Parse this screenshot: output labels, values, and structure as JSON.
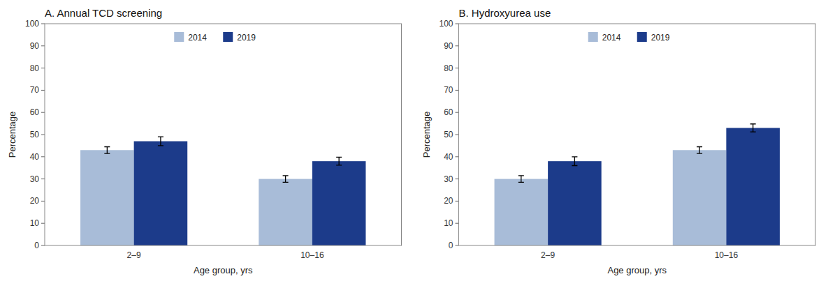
{
  "chart_data": [
    {
      "type": "bar",
      "title": "A. Annual TCD screening",
      "xlabel": "Age group, yrs",
      "ylabel": "Percentage",
      "categories": [
        "2–9",
        "10–16"
      ],
      "series": [
        {
          "name": "2014",
          "color": "#a8bcd8",
          "values": [
            43,
            30
          ],
          "errors": [
            1.5,
            1.5
          ]
        },
        {
          "name": "2019",
          "color": "#1c3b8a",
          "values": [
            47,
            38
          ],
          "errors": [
            2.0,
            1.8
          ]
        }
      ],
      "ylim": [
        0,
        100
      ],
      "yticks": [
        0,
        10,
        20,
        30,
        40,
        50,
        60,
        70,
        80,
        90,
        100
      ],
      "grid": false,
      "legend": "top"
    },
    {
      "type": "bar",
      "title": "B. Hydroxyurea use",
      "xlabel": "Age group, yrs",
      "ylabel": "Percentage",
      "categories": [
        "2–9",
        "10–16"
      ],
      "series": [
        {
          "name": "2014",
          "color": "#a8bcd8",
          "values": [
            30,
            43
          ],
          "errors": [
            1.5,
            1.5
          ]
        },
        {
          "name": "2019",
          "color": "#1c3b8a",
          "values": [
            38,
            53
          ],
          "errors": [
            2.0,
            1.8
          ]
        }
      ],
      "ylim": [
        0,
        100
      ],
      "yticks": [
        0,
        10,
        20,
        30,
        40,
        50,
        60,
        70,
        80,
        90,
        100
      ],
      "grid": false,
      "legend": "top"
    }
  ]
}
